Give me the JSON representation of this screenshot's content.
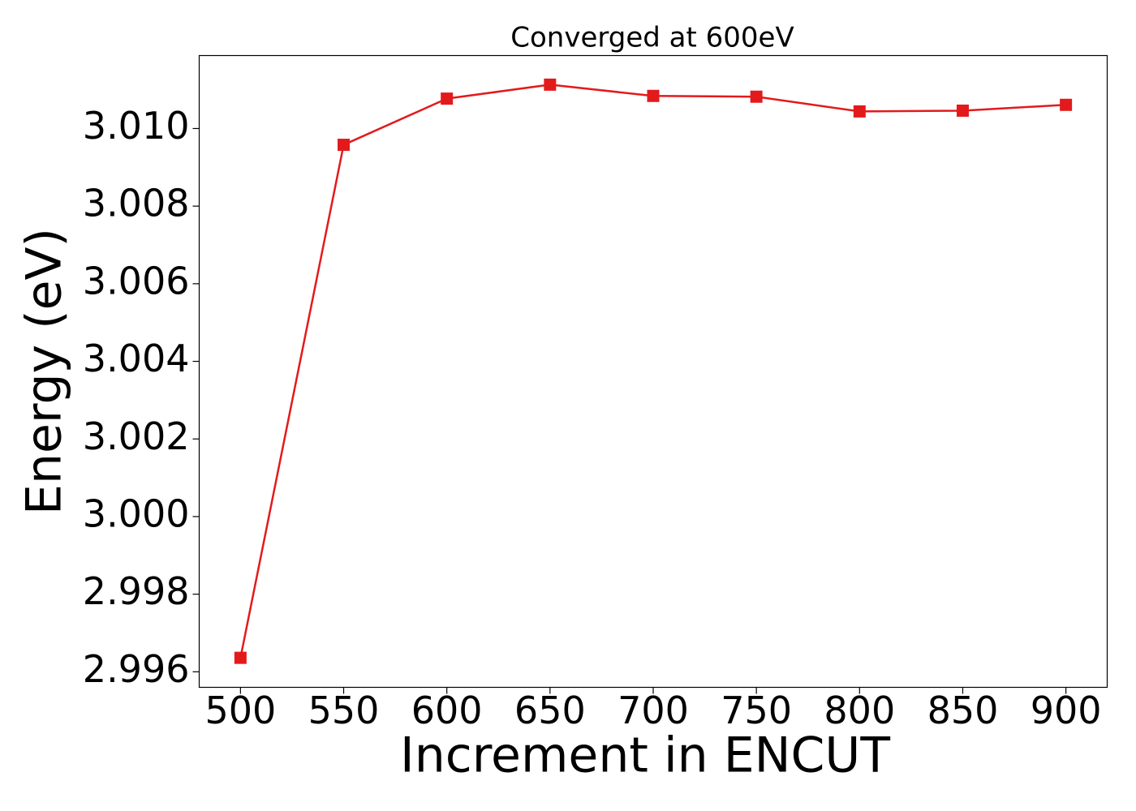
{
  "chart_data": {
    "type": "line",
    "title": "Converged at 600eV",
    "x_label": "Increment in ENCUT",
    "y_label": "Energy (eV)",
    "x": [
      500,
      550,
      600,
      650,
      700,
      750,
      800,
      850,
      900
    ],
    "series": [
      {
        "color": "#e31a1c",
        "marker": "square",
        "values": [
          2.99636,
          3.00958,
          3.01077,
          3.01113,
          3.01084,
          3.01082,
          3.01044,
          3.01046,
          3.01061
        ]
      }
    ],
    "xlim": [
      480,
      920
    ],
    "xticks": [
      500,
      550,
      600,
      650,
      700,
      750,
      800,
      850,
      900
    ],
    "ylim": [
      2.9956,
      3.01188
    ],
    "yticks": [
      2.996,
      2.998,
      {
        "value": 3.0,
        "label": "3.000"
      },
      3.002,
      3.004,
      3.006,
      3.008,
      {
        "value": 3.01,
        "label": "3.010"
      }
    ],
    "grid": false
  }
}
